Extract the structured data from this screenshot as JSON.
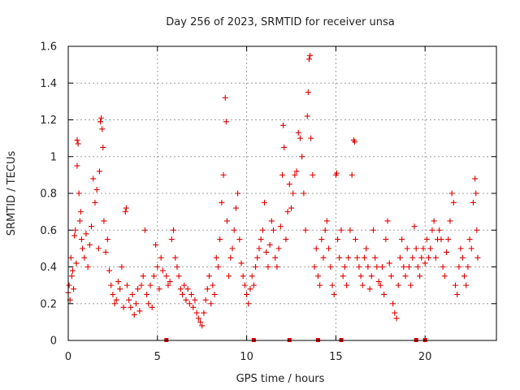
{
  "chart_data": {
    "type": "scatter",
    "title": "Day 256 of 2023, SRMTID for receiver unsa",
    "xlabel": "GPS time / hours",
    "ylabel": "SRMTID / TECUs",
    "xlim": [
      0,
      24
    ],
    "ylim": [
      0,
      1.6
    ],
    "x_ticks": [
      0,
      5,
      10,
      15,
      20
    ],
    "x_tick_labels": [
      "0",
      "5",
      "10",
      "15",
      "20"
    ],
    "y_ticks": [
      0,
      0.2,
      0.4,
      0.6,
      0.8,
      1.0,
      1.2,
      1.4,
      1.6
    ],
    "y_tick_labels": [
      "0",
      "0.2",
      "0.4",
      "0.6",
      "0.8",
      "1",
      "1.2",
      "1.4",
      "1.6"
    ],
    "grid": true,
    "marker": "+",
    "color": "#e00000",
    "baseline_markers_x": [
      5.5,
      10.4,
      12.4,
      14.0,
      15.3,
      19.5,
      20.0
    ],
    "series": [
      {
        "name": "SRMTID",
        "points": [
          [
            0.0,
            0.26
          ],
          [
            0.05,
            0.3
          ],
          [
            0.1,
            0.22
          ],
          [
            0.15,
            0.45
          ],
          [
            0.2,
            0.35
          ],
          [
            0.25,
            0.38
          ],
          [
            0.3,
            0.28
          ],
          [
            0.35,
            0.57
          ],
          [
            0.4,
            0.6
          ],
          [
            0.45,
            0.42
          ],
          [
            0.5,
            0.95
          ],
          [
            0.5,
            1.09
          ],
          [
            0.55,
            1.07
          ],
          [
            0.6,
            0.8
          ],
          [
            0.65,
            0.65
          ],
          [
            0.7,
            0.7
          ],
          [
            0.75,
            0.55
          ],
          [
            0.8,
            0.5
          ],
          [
            0.9,
            0.45
          ],
          [
            1.0,
            0.58
          ],
          [
            1.1,
            0.4
          ],
          [
            1.2,
            0.52
          ],
          [
            1.3,
            0.62
          ],
          [
            1.4,
            0.88
          ],
          [
            1.5,
            0.75
          ],
          [
            1.6,
            0.82
          ],
          [
            1.7,
            0.5
          ],
          [
            1.75,
            0.92
          ],
          [
            1.8,
            1.19
          ],
          [
            1.85,
            1.21
          ],
          [
            1.9,
            1.15
          ],
          [
            1.95,
            1.05
          ],
          [
            2.0,
            0.65
          ],
          [
            2.1,
            0.48
          ],
          [
            2.2,
            0.55
          ],
          [
            2.3,
            0.38
          ],
          [
            2.4,
            0.3
          ],
          [
            2.5,
            0.25
          ],
          [
            2.6,
            0.2
          ],
          [
            2.7,
            0.22
          ],
          [
            2.8,
            0.32
          ],
          [
            2.9,
            0.28
          ],
          [
            3.0,
            0.4
          ],
          [
            3.1,
            0.18
          ],
          [
            3.2,
            0.7
          ],
          [
            3.25,
            0.72
          ],
          [
            3.3,
            0.3
          ],
          [
            3.4,
            0.22
          ],
          [
            3.5,
            0.18
          ],
          [
            3.6,
            0.25
          ],
          [
            3.7,
            0.14
          ],
          [
            3.8,
            0.2
          ],
          [
            3.9,
            0.28
          ],
          [
            4.0,
            0.16
          ],
          [
            4.1,
            0.3
          ],
          [
            4.2,
            0.35
          ],
          [
            4.3,
            0.6
          ],
          [
            4.4,
            0.25
          ],
          [
            4.5,
            0.2
          ],
          [
            4.6,
            0.3
          ],
          [
            4.7,
            0.18
          ],
          [
            4.8,
            0.35
          ],
          [
            4.9,
            0.52
          ],
          [
            5.0,
            0.4
          ],
          [
            5.1,
            0.28
          ],
          [
            5.2,
            0.45
          ],
          [
            5.3,
            0.38
          ],
          [
            5.5,
            0.35
          ],
          [
            5.6,
            0.3
          ],
          [
            5.7,
            0.32
          ],
          [
            5.8,
            0.55
          ],
          [
            5.9,
            0.6
          ],
          [
            6.0,
            0.45
          ],
          [
            6.1,
            0.4
          ],
          [
            6.2,
            0.35
          ],
          [
            6.3,
            0.28
          ],
          [
            6.4,
            0.25
          ],
          [
            6.5,
            0.3
          ],
          [
            6.6,
            0.22
          ],
          [
            6.7,
            0.28
          ],
          [
            6.8,
            0.2
          ],
          [
            6.9,
            0.25
          ],
          [
            7.0,
            0.18
          ],
          [
            7.1,
            0.22
          ],
          [
            7.2,
            0.15
          ],
          [
            7.3,
            0.12
          ],
          [
            7.4,
            0.1
          ],
          [
            7.5,
            0.08
          ],
          [
            7.6,
            0.15
          ],
          [
            7.7,
            0.22
          ],
          [
            7.8,
            0.28
          ],
          [
            7.9,
            0.35
          ],
          [
            8.0,
            0.2
          ],
          [
            8.1,
            0.3
          ],
          [
            8.2,
            0.25
          ],
          [
            8.3,
            0.45
          ],
          [
            8.4,
            0.4
          ],
          [
            8.5,
            0.55
          ],
          [
            8.6,
            0.75
          ],
          [
            8.7,
            0.9
          ],
          [
            8.8,
            1.32
          ],
          [
            8.85,
            1.19
          ],
          [
            8.9,
            0.65
          ],
          [
            9.0,
            0.35
          ],
          [
            9.1,
            0.45
          ],
          [
            9.2,
            0.5
          ],
          [
            9.3,
            0.6
          ],
          [
            9.4,
            0.72
          ],
          [
            9.5,
            0.8
          ],
          [
            9.6,
            0.55
          ],
          [
            9.7,
            0.42
          ],
          [
            9.8,
            0.35
          ],
          [
            9.9,
            0.3
          ],
          [
            10.0,
            0.25
          ],
          [
            10.1,
            0.2
          ],
          [
            10.2,
            0.28
          ],
          [
            10.3,
            0.35
          ],
          [
            10.4,
            0.3
          ],
          [
            10.5,
            0.4
          ],
          [
            10.6,
            0.45
          ],
          [
            10.7,
            0.5
          ],
          [
            10.8,
            0.55
          ],
          [
            10.9,
            0.6
          ],
          [
            11.0,
            0.75
          ],
          [
            11.1,
            0.48
          ],
          [
            11.2,
            0.4
          ],
          [
            11.3,
            0.52
          ],
          [
            11.4,
            0.65
          ],
          [
            11.5,
            0.6
          ],
          [
            11.6,
            0.45
          ],
          [
            11.7,
            0.4
          ],
          [
            11.8,
            0.5
          ],
          [
            11.9,
            0.62
          ],
          [
            12.0,
            0.9
          ],
          [
            12.05,
            1.17
          ],
          [
            12.1,
            1.05
          ],
          [
            12.2,
            0.55
          ],
          [
            12.3,
            0.7
          ],
          [
            12.4,
            0.85
          ],
          [
            12.5,
            0.72
          ],
          [
            12.6,
            0.8
          ],
          [
            12.7,
            0.9
          ],
          [
            12.8,
            0.92
          ],
          [
            12.9,
            1.13
          ],
          [
            13.0,
            1.1
          ],
          [
            13.1,
            1.0
          ],
          [
            13.2,
            0.8
          ],
          [
            13.3,
            0.6
          ],
          [
            13.4,
            1.22
          ],
          [
            13.45,
            1.35
          ],
          [
            13.5,
            1.53
          ],
          [
            13.55,
            1.55
          ],
          [
            13.6,
            1.1
          ],
          [
            13.7,
            0.9
          ],
          [
            13.8,
            0.4
          ],
          [
            13.9,
            0.5
          ],
          [
            14.0,
            0.35
          ],
          [
            14.1,
            0.3
          ],
          [
            14.2,
            0.55
          ],
          [
            14.3,
            0.45
          ],
          [
            14.4,
            0.6
          ],
          [
            14.5,
            0.65
          ],
          [
            14.6,
            0.5
          ],
          [
            14.7,
            0.4
          ],
          [
            14.8,
            0.3
          ],
          [
            14.9,
            0.25
          ],
          [
            15.0,
            0.9
          ],
          [
            15.05,
            0.91
          ],
          [
            15.1,
            0.55
          ],
          [
            15.2,
            0.45
          ],
          [
            15.3,
            0.6
          ],
          [
            15.4,
            0.35
          ],
          [
            15.5,
            0.4
          ],
          [
            15.6,
            0.3
          ],
          [
            15.7,
            0.45
          ],
          [
            15.8,
            0.6
          ],
          [
            15.9,
            0.9
          ],
          [
            16.0,
            1.09
          ],
          [
            16.05,
            1.08
          ],
          [
            16.1,
            0.55
          ],
          [
            16.2,
            0.45
          ],
          [
            16.3,
            0.4
          ],
          [
            16.4,
            0.35
          ],
          [
            16.5,
            0.3
          ],
          [
            16.6,
            0.45
          ],
          [
            16.7,
            0.5
          ],
          [
            16.8,
            0.4
          ],
          [
            16.9,
            0.28
          ],
          [
            17.0,
            0.35
          ],
          [
            17.1,
            0.6
          ],
          [
            17.2,
            0.45
          ],
          [
            17.3,
            0.4
          ],
          [
            17.4,
            0.32
          ],
          [
            17.5,
            0.3
          ],
          [
            17.6,
            0.4
          ],
          [
            17.7,
            0.25
          ],
          [
            17.8,
            0.55
          ],
          [
            17.9,
            0.65
          ],
          [
            18.0,
            0.42
          ],
          [
            18.1,
            0.35
          ],
          [
            18.2,
            0.2
          ],
          [
            18.3,
            0.15
          ],
          [
            18.4,
            0.12
          ],
          [
            18.5,
            0.3
          ],
          [
            18.6,
            0.45
          ],
          [
            18.7,
            0.55
          ],
          [
            18.8,
            0.4
          ],
          [
            18.9,
            0.35
          ],
          [
            19.0,
            0.5
          ],
          [
            19.1,
            0.4
          ],
          [
            19.2,
            0.3
          ],
          [
            19.3,
            0.45
          ],
          [
            19.4,
            0.62
          ],
          [
            19.5,
            0.5
          ],
          [
            19.6,
            0.4
          ],
          [
            19.7,
            0.35
          ],
          [
            19.8,
            0.45
          ],
          [
            19.9,
            0.5
          ],
          [
            20.0,
            0.42
          ],
          [
            20.1,
            0.55
          ],
          [
            20.2,
            0.45
          ],
          [
            20.3,
            0.5
          ],
          [
            20.4,
            0.6
          ],
          [
            20.5,
            0.65
          ],
          [
            20.6,
            0.45
          ],
          [
            20.7,
            0.55
          ],
          [
            20.8,
            0.6
          ],
          [
            20.9,
            0.55
          ],
          [
            21.0,
            0.4
          ],
          [
            21.1,
            0.35
          ],
          [
            21.2,
            0.48
          ],
          [
            21.3,
            0.55
          ],
          [
            21.4,
            0.65
          ],
          [
            21.5,
            0.8
          ],
          [
            21.6,
            0.75
          ],
          [
            21.7,
            0.3
          ],
          [
            21.8,
            0.25
          ],
          [
            21.9,
            0.4
          ],
          [
            22.0,
            0.5
          ],
          [
            22.1,
            0.45
          ],
          [
            22.2,
            0.35
          ],
          [
            22.3,
            0.3
          ],
          [
            22.4,
            0.4
          ],
          [
            22.5,
            0.55
          ],
          [
            22.6,
            0.5
          ],
          [
            22.7,
            0.75
          ],
          [
            22.8,
            0.88
          ],
          [
            22.85,
            0.8
          ],
          [
            22.9,
            0.6
          ],
          [
            22.95,
            0.45
          ]
        ]
      }
    ]
  }
}
